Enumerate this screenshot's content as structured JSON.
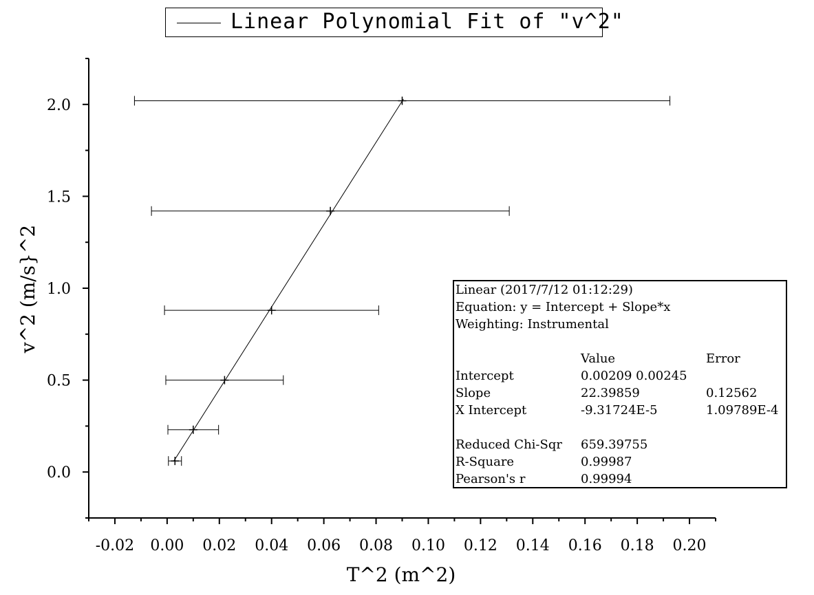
{
  "legend": {
    "label": "Linear Polynomial Fit of \"v^2\""
  },
  "fit_report": {
    "title": "Linear (2017/7/12 01:12:29)",
    "equation": "Equation: y = Intercept + Slope*x",
    "weighting": "Weighting: Instrumental",
    "header_value": "Value",
    "header_error": "Error",
    "rows": [
      {
        "name": "Intercept",
        "value": "0.00209 0.00245",
        "error": ""
      },
      {
        "name": "Slope",
        "value": "22.39859",
        "error": "0.12562"
      },
      {
        "name": "X Intercept",
        "value": "-9.31724E-5",
        "error": "1.09789E-4"
      }
    ],
    "stats": [
      {
        "name": "Reduced Chi-Sqr",
        "value": "659.39755"
      },
      {
        "name": "R-Square",
        "value": "0.99987"
      },
      {
        "name": "Pearson's r",
        "value": "0.99994"
      }
    ]
  },
  "chart_data": {
    "type": "scatter",
    "xlabel": "T^2 (m^2)",
    "ylabel": "v^2 (m/s}^2",
    "xlim": [
      -0.03,
      0.21
    ],
    "ylim": [
      -0.25,
      2.25
    ],
    "xticks": [
      -0.02,
      0.0,
      0.02,
      0.04,
      0.06,
      0.08,
      0.1,
      0.12,
      0.14,
      0.16,
      0.18,
      0.2
    ],
    "xtick_labels": [
      "-0.02",
      "0.00",
      "0.02",
      "0.04",
      "0.06",
      "0.08",
      "0.10",
      "0.12",
      "0.14",
      "0.16",
      "0.18",
      "0.20"
    ],
    "yticks": [
      0.0,
      0.5,
      1.0,
      1.5,
      2.0
    ],
    "ytick_labels": [
      "0.0",
      "0.5",
      "1.0",
      "1.5",
      "2.0"
    ],
    "grid": false,
    "legend_position": "top",
    "series": [
      {
        "points": [
          {
            "x": 0.003,
            "y": 0.06,
            "xerr": 0.0025
          },
          {
            "x": 0.01,
            "y": 0.23,
            "xerr": 0.0097
          },
          {
            "x": 0.022,
            "y": 0.5,
            "xerr": 0.0225
          },
          {
            "x": 0.04,
            "y": 0.88,
            "xerr": 0.041
          },
          {
            "x": 0.0625,
            "y": 1.42,
            "xerr": 0.0685
          },
          {
            "x": 0.09,
            "y": 2.02,
            "xerr": 0.1025
          }
        ]
      }
    ],
    "fit_line": {
      "intercept": 0.00209,
      "slope": 22.39859,
      "x_start": 0.0025,
      "x_end": 0.0905
    }
  }
}
